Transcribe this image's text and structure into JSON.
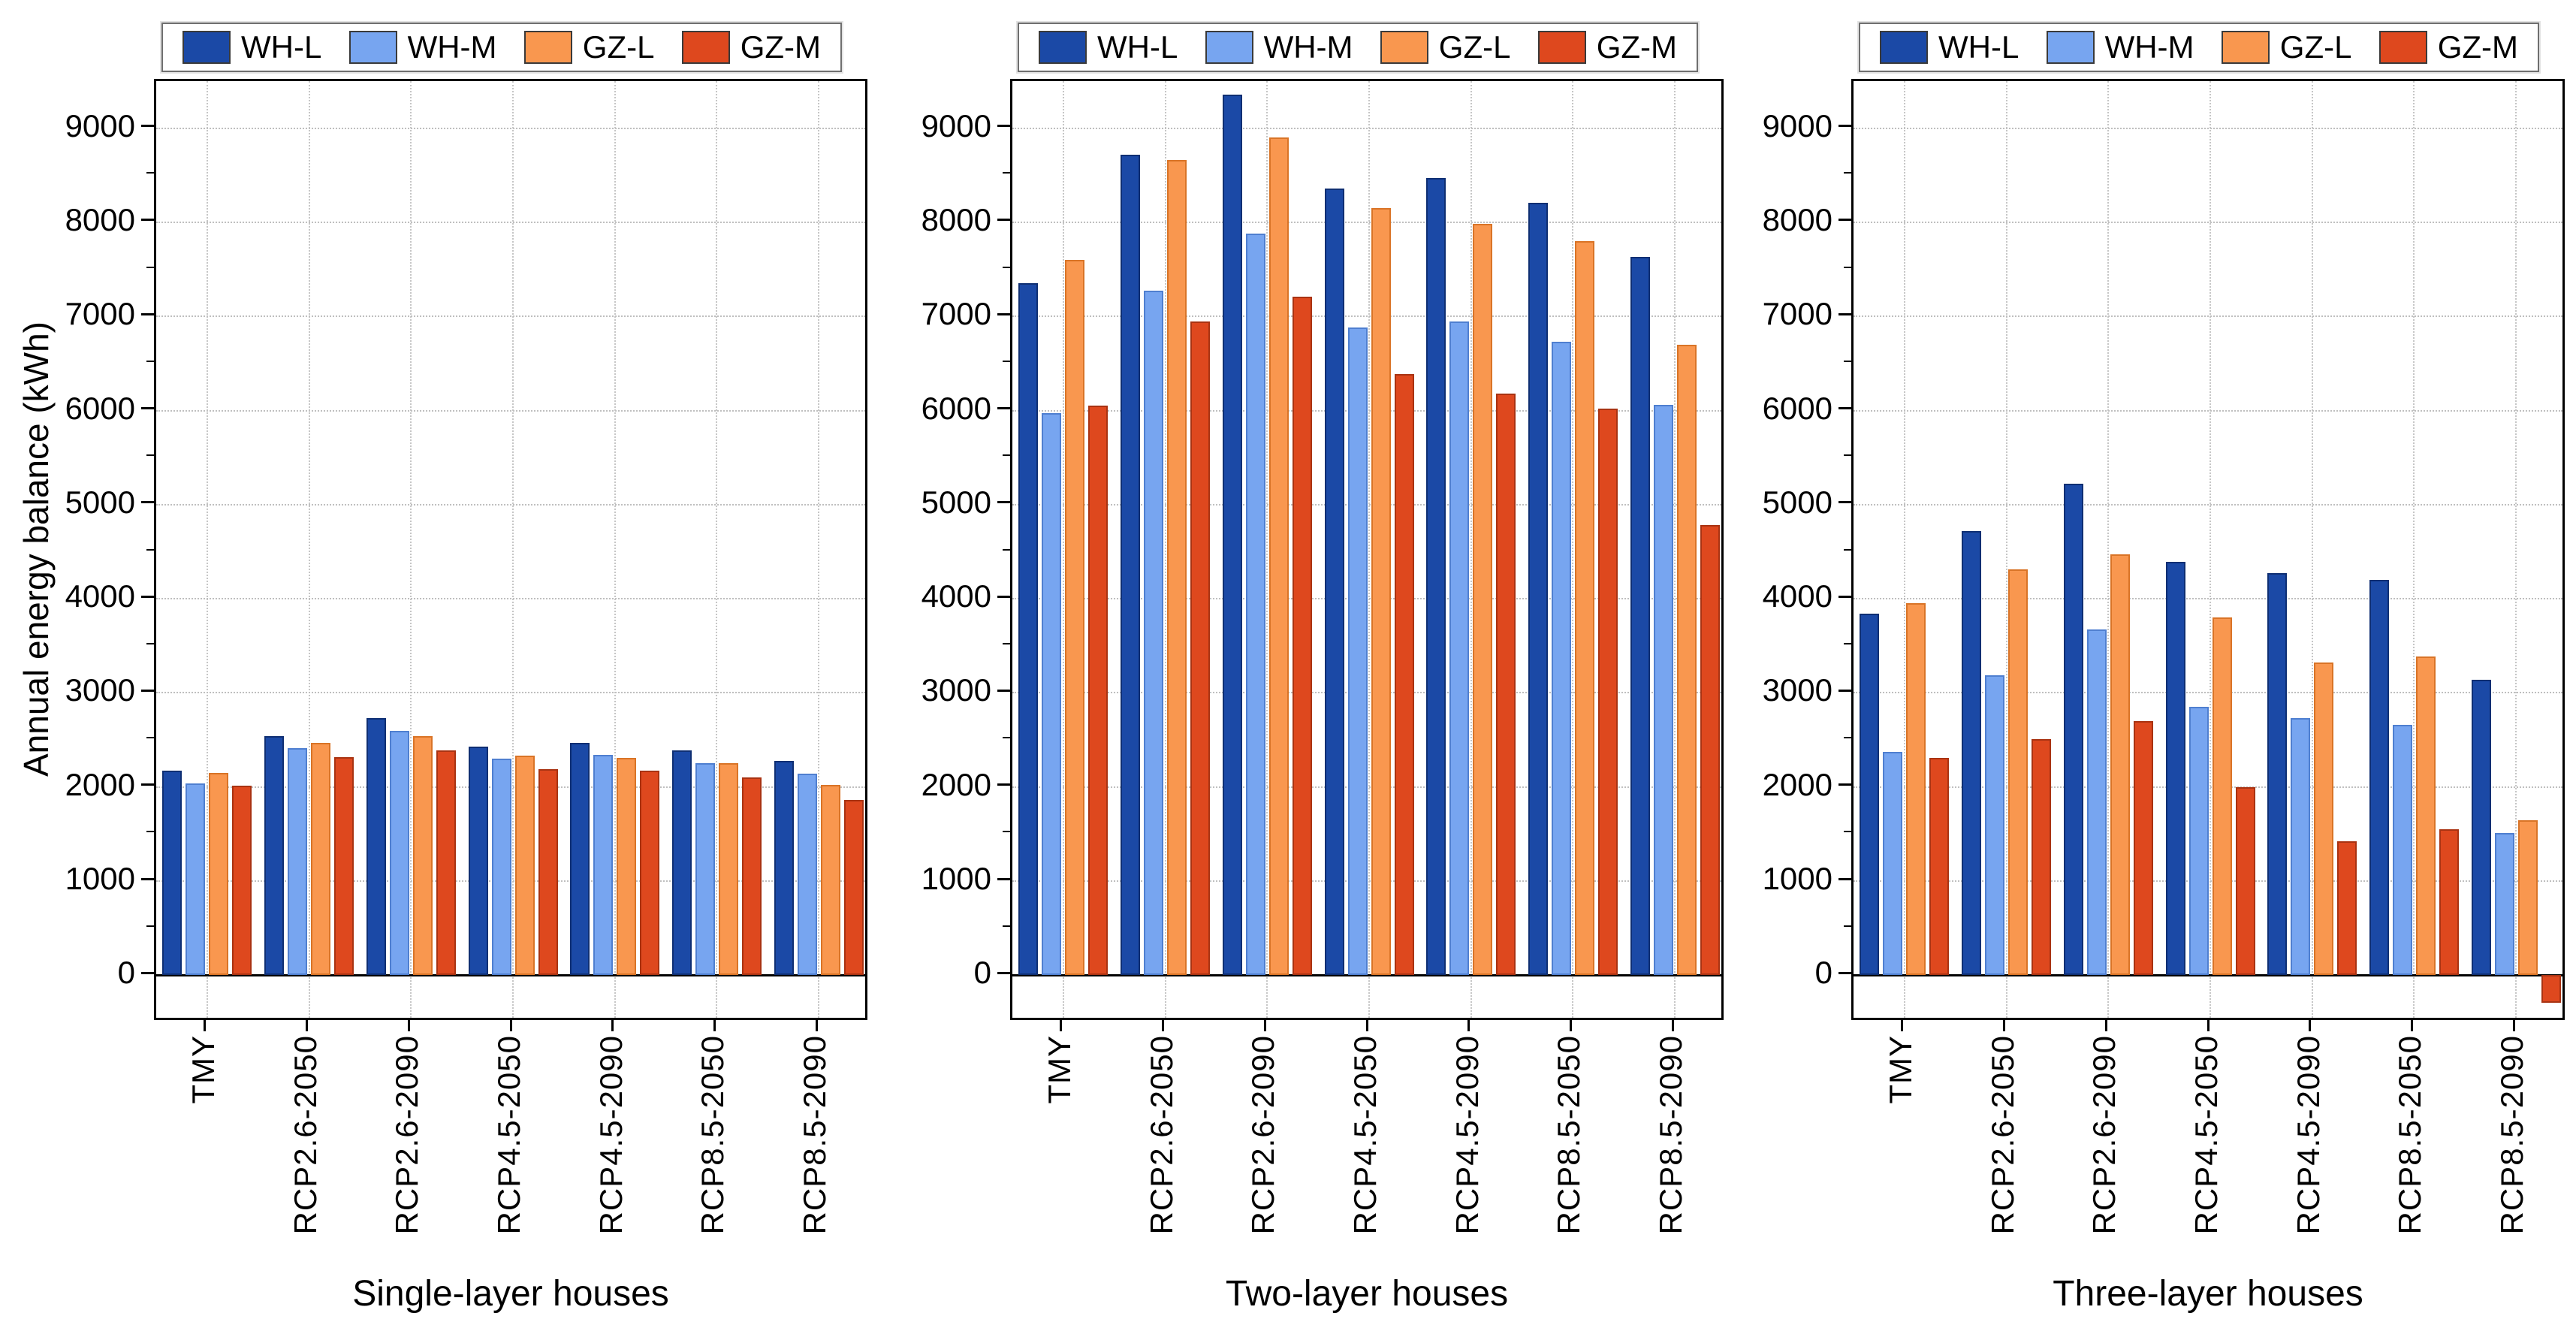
{
  "chart_data": {
    "type": "bar",
    "title": "",
    "ylabel": "Annual energy balance (kWh)",
    "xlabel": "",
    "ylim": [
      -500,
      9500
    ],
    "yticks": [
      0,
      1000,
      2000,
      3000,
      4000,
      5000,
      6000,
      7000,
      8000,
      9000
    ],
    "grid": "dotted",
    "legend_position": "top",
    "categories": [
      "TMY",
      "RCP2.6-2050",
      "RCP2.6-2090",
      "RCP4.5-2050",
      "RCP4.5-2090",
      "RCP8.5-2050",
      "RCP8.5-2090"
    ],
    "series_names": [
      "WH-L",
      "WH-M",
      "GZ-L",
      "GZ-M"
    ],
    "series_colors": [
      "#1b49a6",
      "#77a5f0",
      "#f9974f",
      "#de481e"
    ],
    "series_border_colors": [
      "#0f2f73",
      "#4f7fd0",
      "#d97427",
      "#a93312"
    ],
    "panels": [
      {
        "title": "Single-layer houses",
        "series": [
          {
            "name": "WH-L",
            "values": [
              2170,
              2540,
              2730,
              2430,
              2470,
              2390,
              2280
            ]
          },
          {
            "name": "WH-M",
            "values": [
              2040,
              2410,
              2600,
              2300,
              2340,
              2250,
              2140
            ]
          },
          {
            "name": "GZ-L",
            "values": [
              2150,
              2470,
              2540,
              2330,
              2310,
              2250,
              2020
            ]
          },
          {
            "name": "GZ-M",
            "values": [
              2010,
              2320,
              2390,
              2190,
              2170,
              2100,
              1860
            ]
          }
        ]
      },
      {
        "title": "Two-layer houses",
        "series": [
          {
            "name": "WH-L",
            "values": [
              7350,
              8720,
              9360,
              8360,
              8470,
              8210,
              7630
            ]
          },
          {
            "name": "WH-M",
            "values": [
              5970,
              7270,
              7880,
              6880,
              6950,
              6730,
              6060
            ]
          },
          {
            "name": "GZ-L",
            "values": [
              7600,
              8660,
              8900,
              8150,
              7980,
              7800,
              6700
            ]
          },
          {
            "name": "GZ-M",
            "values": [
              6050,
              6950,
              7210,
              6390,
              6180,
              6020,
              4780
            ]
          }
        ]
      },
      {
        "title": "Three-layer houses",
        "series": [
          {
            "name": "WH-L",
            "values": [
              3840,
              4720,
              5220,
              4390,
              4270,
              4200,
              3140
            ]
          },
          {
            "name": "WH-M",
            "values": [
              2370,
              3190,
              3670,
              2850,
              2730,
              2660,
              1510
            ]
          },
          {
            "name": "GZ-L",
            "values": [
              3950,
              4310,
              4470,
              3800,
              3320,
              3390,
              1650
            ]
          },
          {
            "name": "GZ-M",
            "values": [
              2310,
              2510,
              2700,
              2000,
              1420,
              1550,
              -290
            ]
          }
        ]
      }
    ]
  },
  "legend": {
    "items": [
      {
        "label": "WH-L",
        "color": "#1b49a6"
      },
      {
        "label": "WH-M",
        "color": "#77a5f0"
      },
      {
        "label": "GZ-L",
        "color": "#f9974f"
      },
      {
        "label": "GZ-M",
        "color": "#de481e"
      }
    ]
  }
}
